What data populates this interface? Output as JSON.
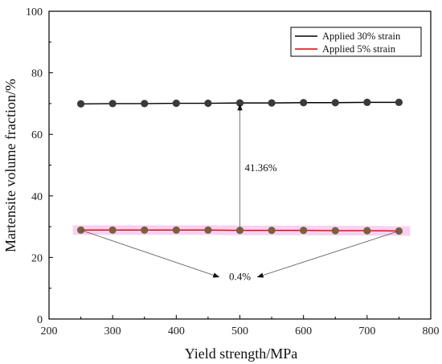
{
  "chart_data": {
    "type": "line",
    "xlabel": "Yield strength/MPa",
    "ylabel": "Martensite volume fraction/%",
    "xlim": [
      200,
      800
    ],
    "ylim": [
      0,
      100
    ],
    "x_ticks": [
      200,
      300,
      400,
      500,
      600,
      700,
      800
    ],
    "y_ticks": [
      0,
      20,
      40,
      60,
      80,
      100
    ],
    "x": [
      250,
      300,
      350,
      400,
      450,
      500,
      550,
      600,
      650,
      700,
      750
    ],
    "series": [
      {
        "name": "Applied 30% strain",
        "color": "#000000",
        "marker_color": "#3a3a3a",
        "values": [
          69.9,
          70.0,
          70.0,
          70.1,
          70.1,
          70.2,
          70.2,
          70.3,
          70.3,
          70.4,
          70.4
        ]
      },
      {
        "name": "Applied 5% strain",
        "color": "#e00000",
        "marker_color": "#7a6040",
        "band_color": "#f6c6ee",
        "values": [
          28.9,
          28.9,
          28.9,
          28.9,
          28.9,
          28.8,
          28.8,
          28.8,
          28.7,
          28.7,
          28.6
        ]
      }
    ],
    "legend_position": "top-right",
    "grid": false,
    "annotations": [
      {
        "text": "41.36%",
        "type": "double-arrow-vertical",
        "x": 500,
        "y_from": 28.8,
        "y_to": 70.2,
        "label_x": 500,
        "label_y": 48
      },
      {
        "text": "0.4%",
        "type": "converging-arrows",
        "label_x": 500,
        "label_y": 12.6
      }
    ]
  }
}
